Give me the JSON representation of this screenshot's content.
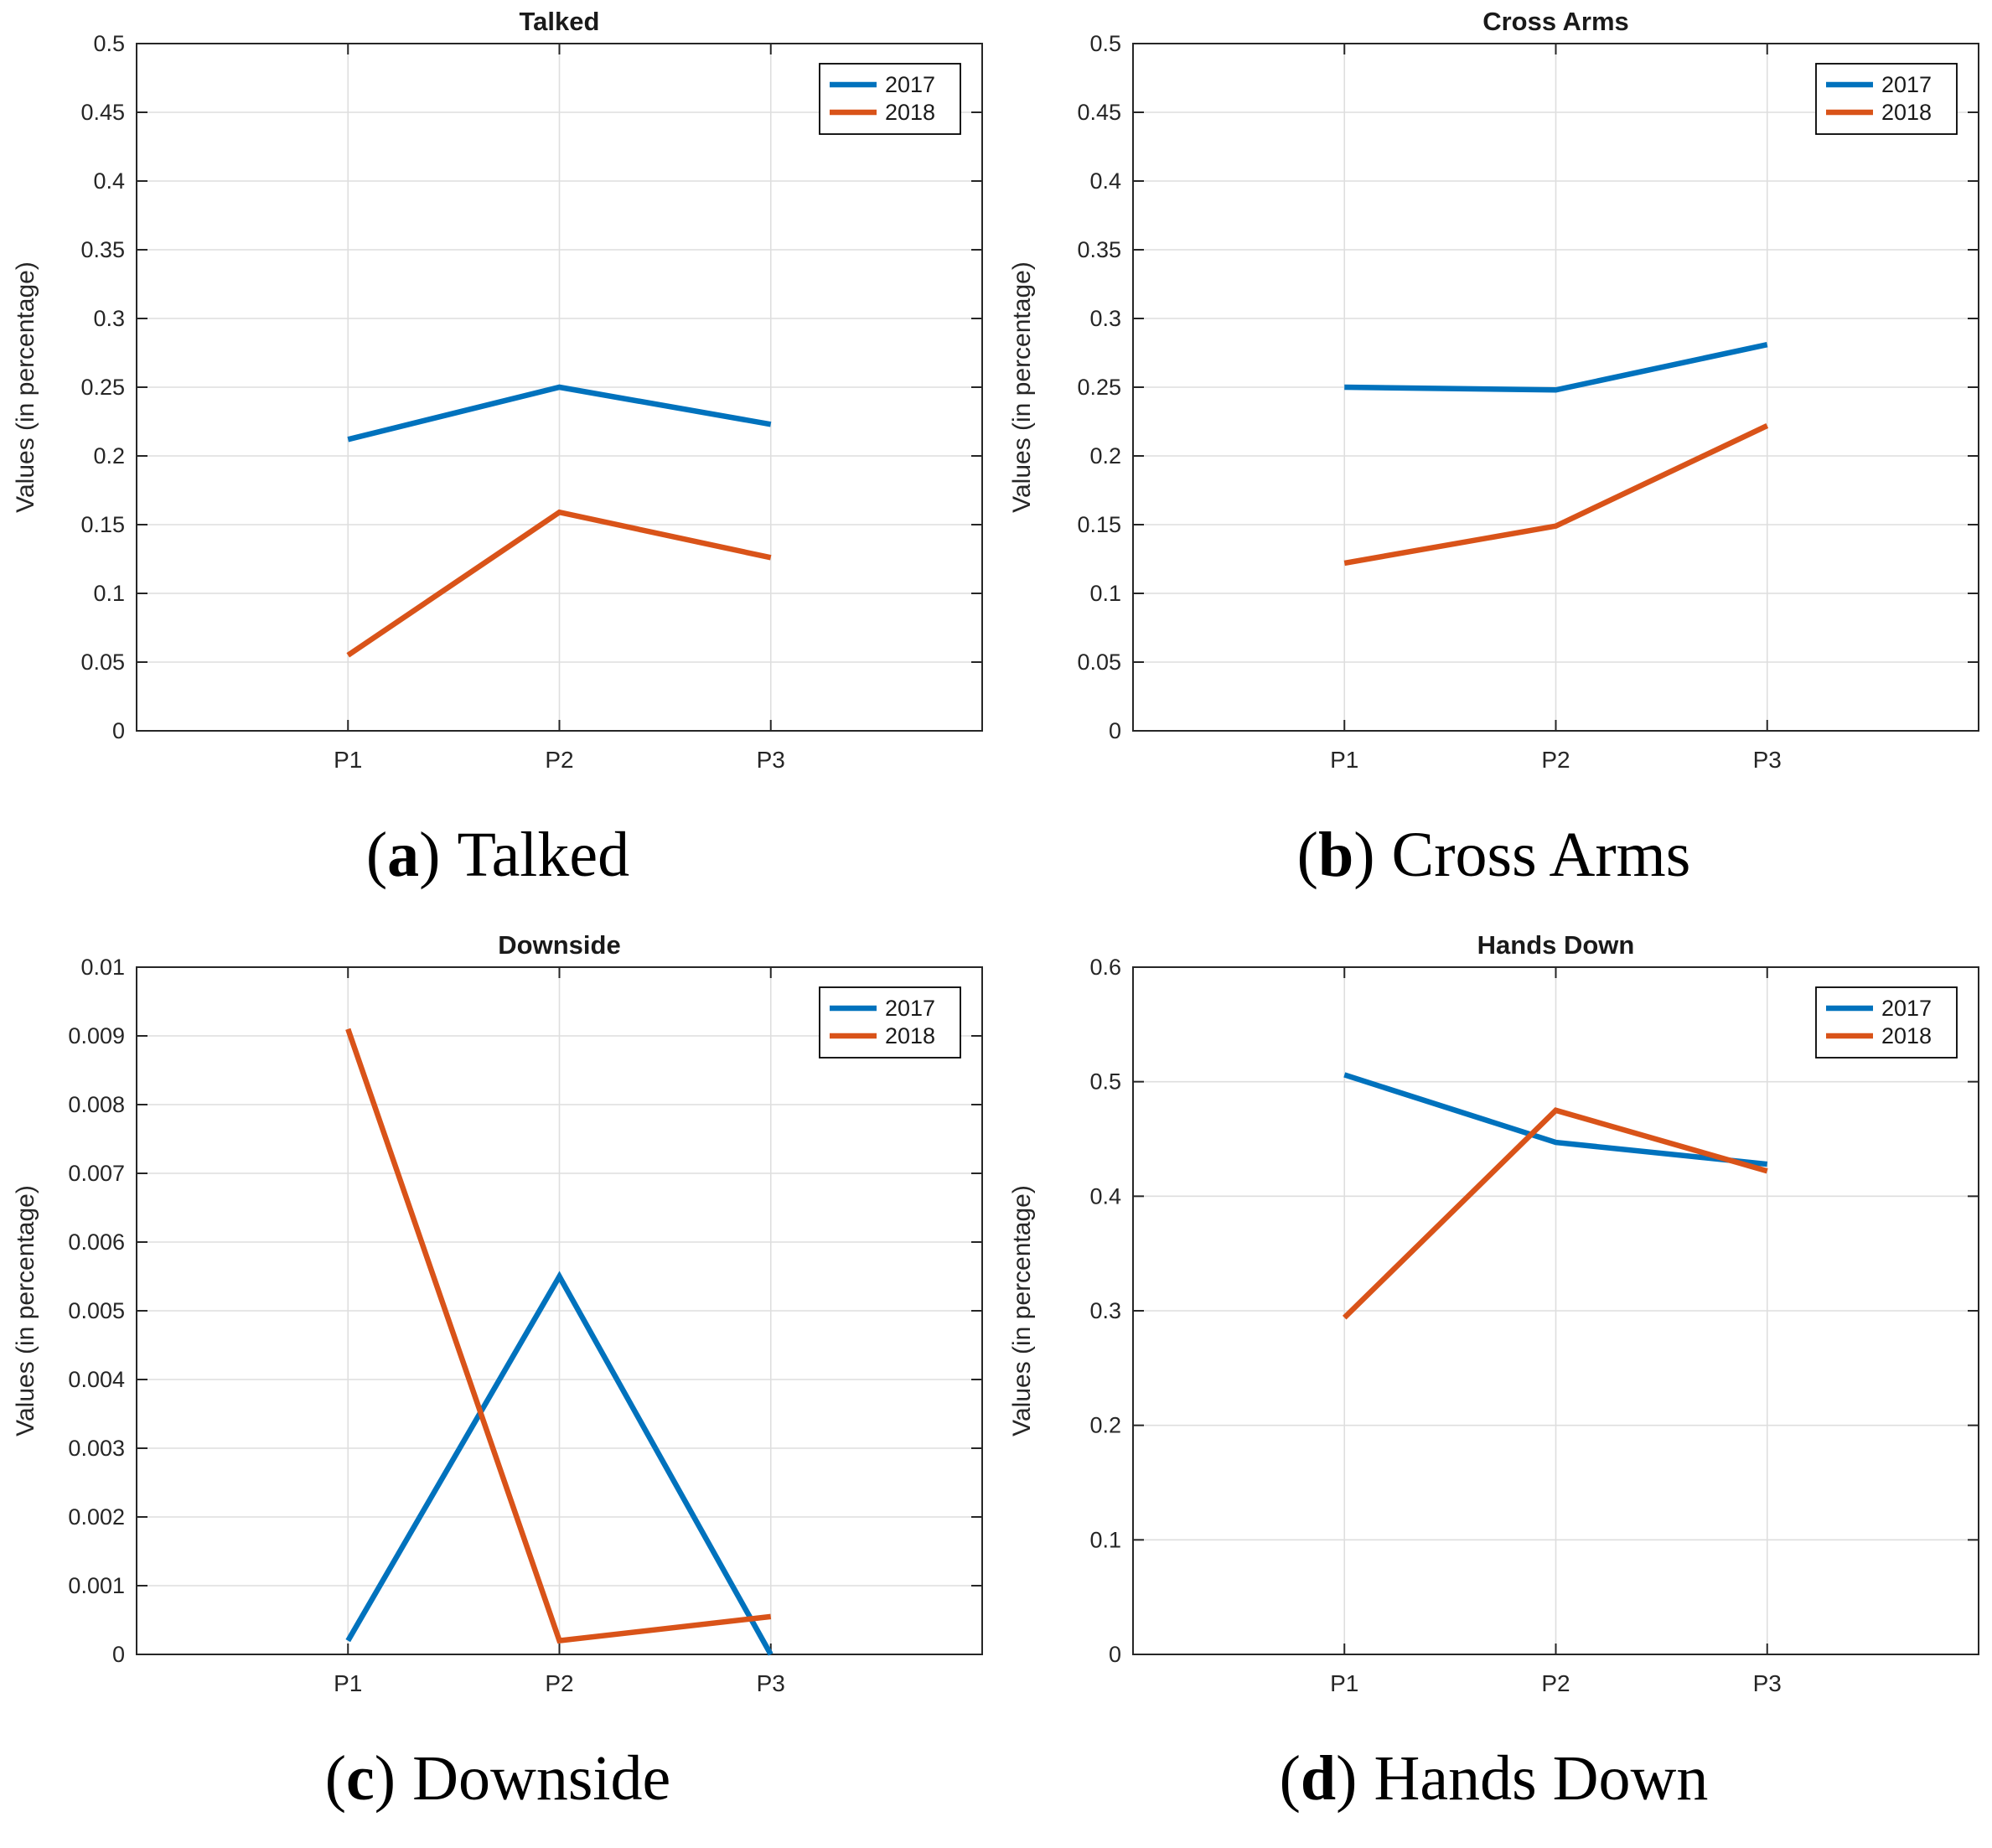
{
  "caption_format": {
    "open": "(",
    "close": ")"
  },
  "styles": {
    "background": "#ffffff",
    "axis_color": "#262626",
    "grid_color": "#dedede",
    "text_color": "#262626",
    "title_color": "#1a1a1a",
    "legend_border_color": "#000000",
    "legend_fill": "#ffffff",
    "series_blue": "#0072BD",
    "series_orange": "#D95319"
  },
  "legend": {
    "position": "top-right",
    "entries": [
      {
        "label": "2017",
        "color": "#0072BD"
      },
      {
        "label": "2018",
        "color": "#D95319"
      }
    ]
  },
  "chart_data": [
    {
      "type": "line",
      "title": "Talked",
      "caption_letter": "a",
      "caption_text": "Talked",
      "xlabel": "",
      "ylabel": "Values (in percentage)",
      "categories": [
        "P1",
        "P2",
        "P3"
      ],
      "ylim": [
        0,
        0.5
      ],
      "yticks": [
        0,
        0.05,
        0.1,
        0.15,
        0.2,
        0.25,
        0.3,
        0.35,
        0.4,
        0.45,
        0.5
      ],
      "ytick_labels": [
        "0",
        "0.05",
        "0.1",
        "0.15",
        "0.2",
        "0.25",
        "0.3",
        "0.35",
        "0.4",
        "0.45",
        "0.5"
      ],
      "grid": true,
      "legend_position": "top-right",
      "series": [
        {
          "name": "2017",
          "color": "#0072BD",
          "values": [
            0.212,
            0.25,
            0.223
          ]
        },
        {
          "name": "2018",
          "color": "#D95319",
          "values": [
            0.055,
            0.159,
            0.126
          ]
        }
      ]
    },
    {
      "type": "line",
      "title": "Cross Arms",
      "caption_letter": "b",
      "caption_text": "Cross Arms",
      "xlabel": "",
      "ylabel": "Values (in percentage)",
      "categories": [
        "P1",
        "P2",
        "P3"
      ],
      "ylim": [
        0,
        0.5
      ],
      "yticks": [
        0,
        0.05,
        0.1,
        0.15,
        0.2,
        0.25,
        0.3,
        0.35,
        0.4,
        0.45,
        0.5
      ],
      "ytick_labels": [
        "0",
        "0.05",
        "0.1",
        "0.15",
        "0.2",
        "0.25",
        "0.3",
        "0.35",
        "0.4",
        "0.45",
        "0.5"
      ],
      "grid": true,
      "legend_position": "top-right",
      "series": [
        {
          "name": "2017",
          "color": "#0072BD",
          "values": [
            0.25,
            0.248,
            0.281
          ]
        },
        {
          "name": "2018",
          "color": "#D95319",
          "values": [
            0.122,
            0.149,
            0.222
          ]
        }
      ]
    },
    {
      "type": "line",
      "title": "Downside",
      "caption_letter": "c",
      "caption_text": "Downside",
      "xlabel": "",
      "ylabel": "Values (in percentage)",
      "categories": [
        "P1",
        "P2",
        "P3"
      ],
      "ylim": [
        0,
        0.01
      ],
      "yticks": [
        0,
        0.001,
        0.002,
        0.003,
        0.004,
        0.005,
        0.006,
        0.007,
        0.008,
        0.009,
        0.01
      ],
      "ytick_labels": [
        "0",
        "0.001",
        "0.002",
        "0.003",
        "0.004",
        "0.005",
        "0.006",
        "0.007",
        "0.008",
        "0.009",
        "0.01"
      ],
      "grid": true,
      "legend_position": "top-right",
      "series": [
        {
          "name": "2017",
          "color": "#0072BD",
          "values": [
            0.0002,
            0.0055,
            0.0
          ]
        },
        {
          "name": "2018",
          "color": "#D95319",
          "values": [
            0.0091,
            0.0002,
            0.00055
          ]
        }
      ]
    },
    {
      "type": "line",
      "title": "Hands Down",
      "caption_letter": "d",
      "caption_text": "Hands Down",
      "xlabel": "",
      "ylabel": "Values (in percentage)",
      "categories": [
        "P1",
        "P2",
        "P3"
      ],
      "ylim": [
        0,
        0.6
      ],
      "yticks": [
        0,
        0.1,
        0.2,
        0.3,
        0.4,
        0.5,
        0.6
      ],
      "ytick_labels": [
        "0",
        "0.1",
        "0.2",
        "0.3",
        "0.4",
        "0.5",
        "0.6"
      ],
      "grid": true,
      "legend_position": "top-right",
      "series": [
        {
          "name": "2017",
          "color": "#0072BD",
          "values": [
            0.506,
            0.447,
            0.428
          ]
        },
        {
          "name": "2018",
          "color": "#D95319",
          "values": [
            0.294,
            0.475,
            0.422
          ]
        }
      ]
    }
  ]
}
